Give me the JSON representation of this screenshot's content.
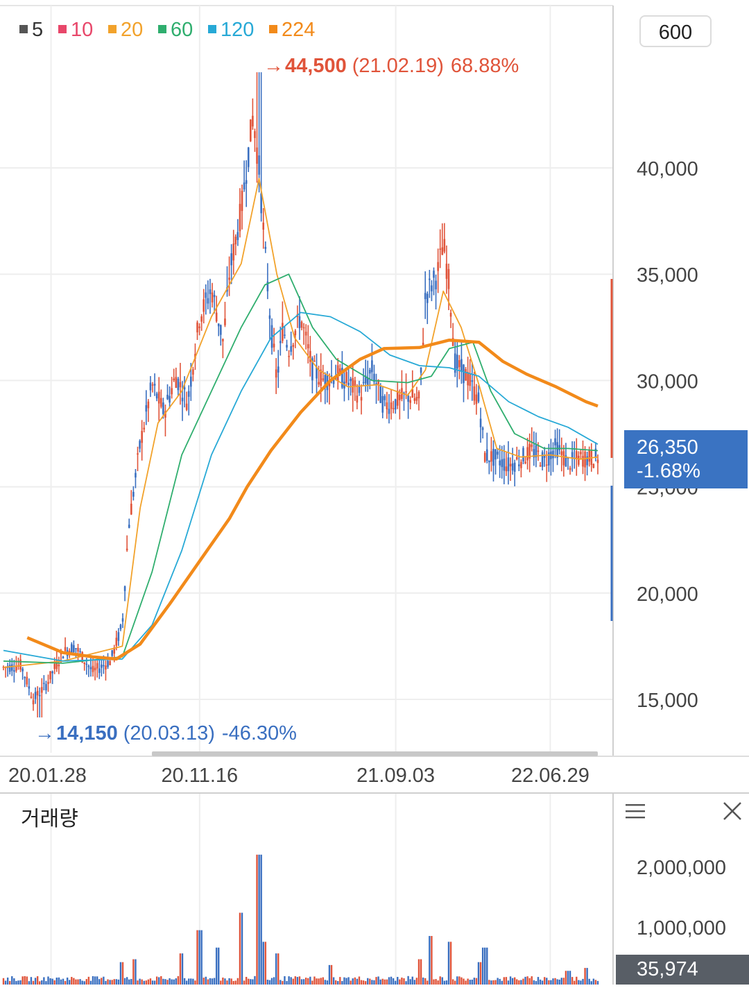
{
  "legend": [
    {
      "label": "5",
      "color": "#555555"
    },
    {
      "label": "10",
      "color": "#e8476a"
    },
    {
      "label": "20",
      "color": "#f2a22b"
    },
    {
      "label": "60",
      "color": "#2fae6e"
    },
    {
      "label": "120",
      "color": "#27a9d6"
    },
    {
      "label": "224",
      "color": "#f28a1a"
    }
  ],
  "period_label": "600",
  "current_price": {
    "value": "26,350",
    "change": "-1.68%"
  },
  "volume_title": "거래량",
  "current_volume": "35,974",
  "colors": {
    "up": "#e0543a",
    "down": "#3a6fc0",
    "grid": "#eeeeee",
    "axis_text": "#444444"
  },
  "chart_data": [
    {
      "type": "candlestick",
      "x_ticks": [
        "20.01.28",
        "20.11.16",
        "21.09.03",
        "22.06.29"
      ],
      "y_ticks": [
        "15,000",
        "20,000",
        "25,000",
        "30,000",
        "35,000",
        "40,000"
      ],
      "ylim": [
        12000,
        46000
      ],
      "max_annotation": {
        "price": "44,500",
        "date": "(21.02.19)",
        "pct": "68.88%"
      },
      "min_annotation": {
        "price": "14,150",
        "date": "(20.03.13)",
        "pct": "-46.30%"
      },
      "close_profile": [
        [
          0,
          16500
        ],
        [
          3,
          16600
        ],
        [
          5,
          15000
        ],
        [
          7,
          15600
        ],
        [
          10,
          17200
        ],
        [
          12,
          17500
        ],
        [
          15,
          16300
        ],
        [
          18,
          16800
        ],
        [
          20,
          18500
        ],
        [
          21,
          23000
        ],
        [
          23,
          27000
        ],
        [
          25,
          29800
        ],
        [
          27,
          28500
        ],
        [
          29,
          30200
        ],
        [
          31,
          29000
        ],
        [
          33,
          33000
        ],
        [
          35,
          34300
        ],
        [
          37,
          31800
        ],
        [
          38,
          35000
        ],
        [
          40,
          38000
        ],
        [
          42,
          42500
        ],
        [
          43,
          40000
        ],
        [
          44,
          36000
        ],
        [
          45,
          32500
        ],
        [
          46,
          30000
        ],
        [
          47,
          32500
        ],
        [
          48,
          31500
        ],
        [
          50,
          33000
        ],
        [
          52,
          30500
        ],
        [
          54,
          30000
        ],
        [
          56,
          30300
        ],
        [
          58,
          29900
        ],
        [
          60,
          29300
        ],
        [
          62,
          30500
        ],
        [
          64,
          28800
        ],
        [
          66,
          29000
        ],
        [
          68,
          29300
        ],
        [
          70,
          29000
        ],
        [
          71,
          34000
        ],
        [
          73,
          35000
        ],
        [
          74,
          36500
        ],
        [
          75,
          34500
        ],
        [
          76,
          30800
        ],
        [
          78,
          30200
        ],
        [
          80,
          29000
        ],
        [
          81,
          26500
        ],
        [
          83,
          26300
        ],
        [
          85,
          26000
        ],
        [
          87,
          26300
        ],
        [
          89,
          26700
        ],
        [
          91,
          26200
        ],
        [
          93,
          26900
        ],
        [
          95,
          26100
        ],
        [
          97,
          26350
        ],
        [
          100,
          26350
        ]
      ],
      "ma_lines": [
        {
          "name": "20",
          "points": [
            [
              0,
              16500
            ],
            [
              10,
              16800
            ],
            [
              20,
              17500
            ],
            [
              23,
              24000
            ],
            [
              26,
              28000
            ],
            [
              30,
              29500
            ],
            [
              35,
              33000
            ],
            [
              40,
              35500
            ],
            [
              43,
              39500
            ],
            [
              46,
              35000
            ],
            [
              49,
              32000
            ],
            [
              53,
              30500
            ],
            [
              58,
              29700
            ],
            [
              63,
              29800
            ],
            [
              68,
              29300
            ],
            [
              71,
              30500
            ],
            [
              74,
              34200
            ],
            [
              77,
              32500
            ],
            [
              80,
              29800
            ],
            [
              83,
              26800
            ],
            [
              87,
              26400
            ],
            [
              92,
              26500
            ],
            [
              97,
              26300
            ],
            [
              100,
              26400
            ]
          ]
        },
        {
          "name": "60",
          "points": [
            [
              0,
              16800
            ],
            [
              10,
              16700
            ],
            [
              20,
              17000
            ],
            [
              25,
              21000
            ],
            [
              30,
              26500
            ],
            [
              35,
              29500
            ],
            [
              40,
              32500
            ],
            [
              44,
              34500
            ],
            [
              48,
              35000
            ],
            [
              52,
              32500
            ],
            [
              56,
              31000
            ],
            [
              62,
              30000
            ],
            [
              68,
              29900
            ],
            [
              72,
              30200
            ],
            [
              75,
              31500
            ],
            [
              79,
              31800
            ],
            [
              82,
              29500
            ],
            [
              86,
              27500
            ],
            [
              91,
              26800
            ],
            [
              95,
              26800
            ],
            [
              100,
              26700
            ]
          ]
        },
        {
          "name": "120",
          "points": [
            [
              0,
              17300
            ],
            [
              10,
              16800
            ],
            [
              20,
              16900
            ],
            [
              25,
              18500
            ],
            [
              30,
              22000
            ],
            [
              35,
              26500
            ],
            [
              40,
              29500
            ],
            [
              45,
              32000
            ],
            [
              50,
              33200
            ],
            [
              55,
              33000
            ],
            [
              60,
              32300
            ],
            [
              65,
              31200
            ],
            [
              70,
              30700
            ],
            [
              75,
              30600
            ],
            [
              80,
              30200
            ],
            [
              85,
              29000
            ],
            [
              90,
              28300
            ],
            [
              95,
              27800
            ],
            [
              100,
              27000
            ]
          ]
        },
        {
          "name": "224",
          "points": [
            [
              4,
              17900
            ],
            [
              10,
              17200
            ],
            [
              15,
              17000
            ],
            [
              19,
              16900
            ],
            [
              23,
              17600
            ],
            [
              28,
              19500
            ],
            [
              33,
              21500
            ],
            [
              38,
              23500
            ],
            [
              41,
              25000
            ],
            [
              45,
              26700
            ],
            [
              50,
              28500
            ],
            [
              55,
              30000
            ],
            [
              60,
              31000
            ],
            [
              64,
              31500
            ],
            [
              70,
              31550
            ],
            [
              75,
              31900
            ],
            [
              80,
              31800
            ],
            [
              84,
              30900
            ],
            [
              88,
              30300
            ],
            [
              93,
              29700
            ],
            [
              98,
              29000
            ],
            [
              100,
              28800
            ]
          ]
        }
      ]
    },
    {
      "type": "bar",
      "title": "거래량",
      "y_ticks": [
        "1,000,000",
        "2,000,000"
      ],
      "ylim": [
        0,
        2400000
      ],
      "spikes": [
        [
          20,
          350000
        ],
        [
          22,
          400000
        ],
        [
          30,
          500000
        ],
        [
          33,
          900000
        ],
        [
          36,
          600000
        ],
        [
          40,
          1200000
        ],
        [
          43,
          2200000
        ],
        [
          44,
          700000
        ],
        [
          46,
          500000
        ],
        [
          55,
          300000
        ],
        [
          70,
          400000
        ],
        [
          72,
          800000
        ],
        [
          75,
          700000
        ],
        [
          80,
          350000
        ],
        [
          81,
          600000
        ],
        [
          95,
          200000
        ],
        [
          98,
          250000
        ]
      ]
    }
  ]
}
